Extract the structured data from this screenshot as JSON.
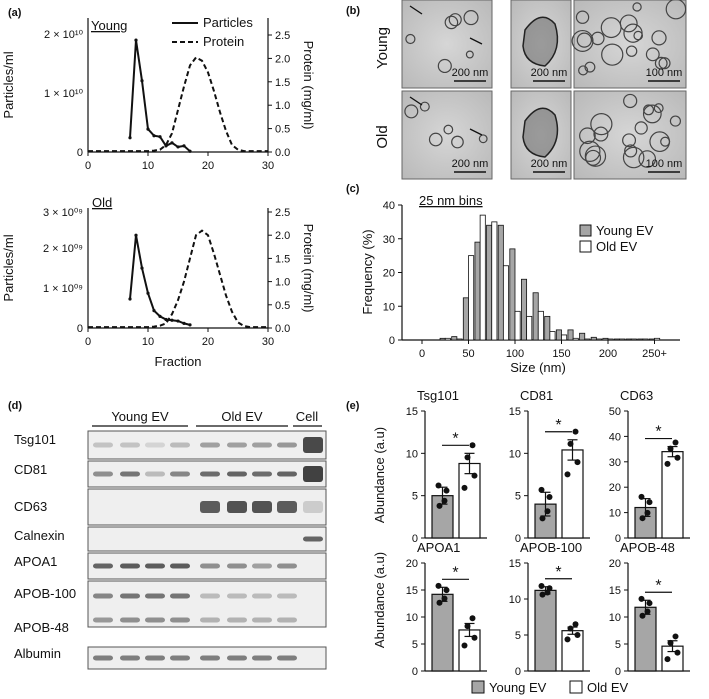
{
  "panels": {
    "a": "(a)",
    "b": "(b)",
    "c": "(c)",
    "d": "(d)",
    "e": "(e)"
  },
  "panel_a": {
    "legend": [
      "Particles",
      "Protein"
    ],
    "xlabel": "Fraction",
    "left_ylabel": "Particles/ml",
    "right_ylabel": "Protein (mg/ml)",
    "top": {
      "group": "Young",
      "left_ticks": [
        "2 × 10¹⁰",
        "1 × 10¹⁰",
        "0"
      ],
      "right_ticks": [
        "2.5",
        "2.0",
        "1.5",
        "1.0",
        "0.5",
        "0.0"
      ],
      "x_ticks": [
        "0",
        "10",
        "20",
        "30"
      ]
    },
    "bottom": {
      "group": "Old",
      "left_ticks": [
        "3 × 10⁰⁹",
        "2 × 10⁰⁹",
        "1 × 10⁰⁹",
        "0"
      ],
      "right_ticks": [
        "2.5",
        "2.0",
        "1.5",
        "1.0",
        "0.5",
        "0.0"
      ],
      "x_ticks": [
        "0",
        "10",
        "20",
        "30"
      ]
    }
  },
  "panel_b": {
    "rows": [
      "Young",
      "Old"
    ],
    "scalebars": [
      "200 nm",
      "200 nm",
      "100 nm",
      "200 nm",
      "200 nm",
      "100 nm"
    ]
  },
  "panel_d": {
    "groups": [
      "Young EV",
      "Old EV",
      "Cell"
    ],
    "bands": [
      "Tsg101",
      "CD81",
      "CD63",
      "Calnexin",
      "APOA1",
      "APOB-100",
      "APOB-48",
      "Albumin"
    ]
  },
  "chart_data": [
    {
      "type": "line",
      "title": "Young",
      "xlabel": "",
      "ylabel": "Particles/ml",
      "y2label": "Protein (mg/ml)",
      "xlim": [
        0,
        30
      ],
      "ylim": [
        0,
        23000000000.0
      ],
      "y2lim": [
        0,
        2.5
      ],
      "series": [
        {
          "name": "Particles",
          "axis": "left",
          "x": [
            7,
            8,
            9,
            10,
            11,
            12,
            13,
            14,
            15,
            16,
            17
          ],
          "y": [
            2800000000.0,
            22000000000.0,
            14000000000.0,
            4500000000.0,
            3200000000.0,
            3000000000.0,
            1200000000.0,
            1800000000.0,
            1000000000.0,
            1200000000.0,
            150000000.0
          ]
        },
        {
          "name": "Protein",
          "axis": "right",
          "x": [
            0,
            10,
            11,
            12,
            13,
            14,
            15,
            16,
            17,
            18,
            19,
            20,
            21,
            22,
            23,
            24,
            25,
            26,
            27,
            28,
            29,
            30
          ],
          "y": [
            0.02,
            0.02,
            0.03,
            0.05,
            0.15,
            0.4,
            0.9,
            1.4,
            1.85,
            2.02,
            1.95,
            1.7,
            1.3,
            0.85,
            0.45,
            0.15,
            0.05,
            0.02,
            0.02,
            0.02,
            0.02,
            0.02
          ]
        }
      ]
    },
    {
      "type": "line",
      "title": "Old",
      "xlabel": "Fraction",
      "ylabel": "Particles/ml",
      "y2label": "Protein (mg/ml)",
      "xlim": [
        0,
        30
      ],
      "ylim": [
        0,
        3000000000.0
      ],
      "y2lim": [
        0,
        2.5
      ],
      "series": [
        {
          "name": "Particles",
          "axis": "left",
          "x": [
            7,
            8,
            9,
            10,
            11,
            12,
            13,
            14,
            15,
            16,
            17
          ],
          "y": [
            750000000.0,
            2400000000.0,
            1550000000.0,
            900000000.0,
            450000000.0,
            300000000.0,
            220000000.0,
            200000000.0,
            180000000.0,
            120000000.0,
            80000000.0
          ]
        },
        {
          "name": "Protein",
          "axis": "right",
          "x": [
            0,
            10,
            11,
            12,
            13,
            14,
            15,
            16,
            17,
            18,
            19,
            20,
            21,
            22,
            23,
            24,
            25,
            26,
            27,
            28,
            29,
            30
          ],
          "y": [
            0.02,
            0.02,
            0.03,
            0.05,
            0.1,
            0.3,
            0.6,
            1.0,
            1.5,
            2.0,
            2.1,
            2.0,
            1.6,
            1.15,
            0.7,
            0.35,
            0.12,
            0.04,
            0.02,
            0.02,
            0.02,
            0.02
          ]
        }
      ]
    },
    {
      "type": "bar",
      "title": "25 nm bins",
      "xlabel": "Size (nm)",
      "ylabel": "Frequency (%)",
      "ylim": [
        0,
        40
      ],
      "x_ticks": [
        "0",
        "50",
        "100",
        "150",
        "200",
        "250+"
      ],
      "categories": [
        25,
        37.5,
        50,
        62.5,
        75,
        87.5,
        100,
        112.5,
        125,
        137.5,
        150,
        162.5,
        175,
        187.5,
        200,
        212.5,
        225,
        237.5,
        250
      ],
      "series": [
        {
          "name": "Young EV",
          "values": [
            0.5,
            1,
            12.5,
            29,
            34,
            34,
            27,
            18,
            14,
            7,
            3,
            3,
            2,
            0.8,
            0.5,
            0.3,
            0.3,
            0.3,
            0.3
          ]
        },
        {
          "name": "Old EV",
          "values": [
            0.5,
            0.3,
            25,
            37,
            35,
            22,
            8.5,
            7,
            8.5,
            2.5,
            1.5,
            0.5,
            0.3,
            0.3,
            0.3,
            0.3,
            0.3,
            0.3,
            0.5
          ]
        }
      ],
      "legend": [
        "Young EV",
        "Old EV"
      ]
    },
    {
      "type": "bar",
      "ylabel": "Abundance (a.u)",
      "legend": [
        "Young EV",
        "Old EV"
      ],
      "subplots": [
        {
          "title": "Tsg101",
          "ylim": [
            0,
            15
          ],
          "ticks": [
            "0",
            "5",
            "10",
            "15"
          ],
          "values": [
            5,
            8.8
          ],
          "err": [
            1,
            1.2
          ],
          "sig": "*"
        },
        {
          "title": "CD81",
          "ylim": [
            0,
            15
          ],
          "ticks": [
            "0",
            "5",
            "10",
            "15"
          ],
          "values": [
            4,
            10.4
          ],
          "err": [
            1.4,
            1.2
          ],
          "sig": "*"
        },
        {
          "title": "CD63",
          "ylim": [
            0,
            50
          ],
          "ticks": [
            "0",
            "10",
            "20",
            "30",
            "40",
            "50"
          ],
          "values": [
            12,
            34
          ],
          "err": [
            3.5,
            2
          ],
          "sig": "*"
        },
        {
          "title": "APOA1",
          "ylim": [
            0,
            20
          ],
          "ticks": [
            "0",
            "5",
            "10",
            "15",
            "20"
          ],
          "values": [
            14.2,
            7.6
          ],
          "err": [
            1.3,
            1.2
          ],
          "sig": "*"
        },
        {
          "title": "APOB-100",
          "ylim": [
            0,
            15
          ],
          "ticks": [
            "0",
            "5",
            "10",
            "15"
          ],
          "values": [
            11.2,
            5.6
          ],
          "err": [
            0.5,
            0.5
          ],
          "sig": "*"
        },
        {
          "title": "APOB-48",
          "ylim": [
            0,
            20
          ],
          "ticks": [
            "0",
            "5",
            "10",
            "15",
            "20"
          ],
          "values": [
            11.8,
            4.6
          ],
          "err": [
            1.3,
            1
          ],
          "sig": "*"
        }
      ]
    }
  ],
  "colors": {
    "young": "#a6a6a6",
    "old": "#ffffff",
    "em_bg": "#c9c9c9",
    "blot_bg": "#eeeeee"
  }
}
